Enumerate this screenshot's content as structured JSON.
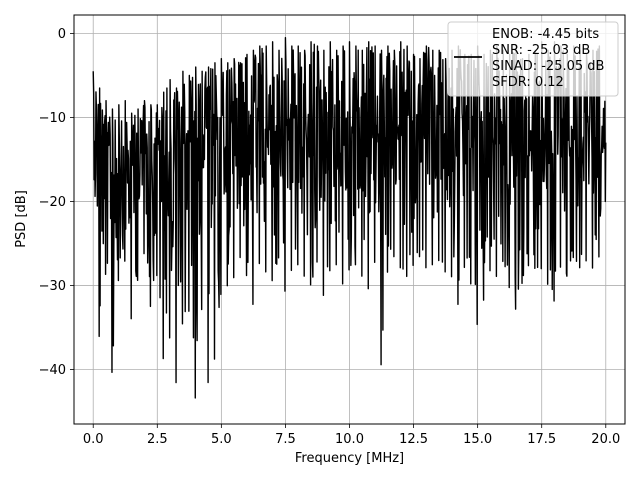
{
  "chart_data": {
    "type": "line",
    "title": "",
    "xlabel": "Frequency [MHz]",
    "ylabel": "PSD [dB]",
    "xlim": [
      -0.75,
      20.75
    ],
    "ylim": [
      -46.5,
      2.2
    ],
    "xticks": [
      0.0,
      2.5,
      5.0,
      7.5,
      10.0,
      12.5,
      15.0,
      17.5,
      20.0
    ],
    "xtick_labels": [
      "0.0",
      "2.5",
      "5.0",
      "7.5",
      "10.0",
      "12.5",
      "15.0",
      "17.5",
      "20.0"
    ],
    "yticks": [
      0,
      -10,
      -20,
      -30,
      -40
    ],
    "ytick_labels": [
      "0",
      "−10",
      "−20",
      "−30",
      "−40"
    ],
    "grid": true,
    "legend": {
      "position": "top-right",
      "entries": [
        "ENOB: -4.45 bits",
        "SNR: -25.03 dB",
        "SINAD: -25.05 dB",
        "SFDR: 0.12"
      ]
    },
    "series": [
      {
        "color": "#000000",
        "x": [
          0.0,
          0.25,
          0.5,
          0.75,
          1.0,
          1.25,
          1.5,
          1.75,
          2.0,
          2.25,
          2.5,
          2.75,
          3.0,
          3.25,
          3.5,
          3.75,
          4.0,
          4.25,
          4.5,
          4.75,
          5.0,
          5.25,
          5.5,
          5.75,
          6.0,
          6.25,
          6.5,
          6.75,
          7.0,
          7.25,
          7.5,
          7.75,
          8.0,
          8.25,
          8.5,
          8.75,
          9.0,
          9.25,
          9.5,
          9.75,
          10.0,
          10.25,
          10.5,
          10.75,
          11.0,
          11.25,
          11.5,
          11.75,
          12.0,
          12.25,
          12.5,
          12.75,
          13.0,
          13.25,
          13.5,
          13.75,
          14.0,
          14.25,
          14.5,
          14.75,
          15.0,
          15.25,
          15.5,
          15.75,
          16.0,
          16.25,
          16.5,
          16.75,
          17.0,
          17.25,
          17.5,
          17.75,
          18.0,
          18.25,
          18.5,
          18.75,
          19.0,
          19.25,
          19.5,
          19.75,
          20.0
        ],
        "y_max": [
          -4.5,
          -6.5,
          -8.0,
          -9.0,
          -8.5,
          -8.0,
          -9.5,
          -9.0,
          -8.0,
          -8.5,
          -8.5,
          -7.0,
          -5.5,
          -6.5,
          -4.5,
          -5.0,
          -4.0,
          -4.5,
          -4.0,
          -3.5,
          -3.0,
          -3.5,
          -3.0,
          -3.5,
          -2.5,
          -2.0,
          -1.5,
          -1.5,
          -1.0,
          -2.0,
          -0.5,
          -1.5,
          -1.5,
          -2.0,
          -1.0,
          -1.5,
          -2.0,
          -1.0,
          -2.0,
          -1.5,
          -1.0,
          -1.5,
          -2.0,
          -1.0,
          -1.5,
          -2.0,
          -1.5,
          -2.0,
          -1.0,
          -1.5,
          -2.5,
          -3.0,
          -1.5,
          -2.0,
          -2.0,
          -3.0,
          -2.0,
          -1.5,
          -2.5,
          -2.5,
          -1.5,
          -2.5,
          -2.0,
          -1.5,
          -2.0,
          -2.5,
          -1.5,
          -3.0,
          -2.5,
          -2.0,
          -1.0,
          -2.0,
          -1.0,
          -1.5,
          -2.5,
          -1.5,
          -2.0,
          -2.5,
          -2.0,
          -1.5,
          -4.0
        ],
        "y_min": [
          -17.5,
          -37.5,
          -28.0,
          -41.3,
          -28.5,
          -27.0,
          -34.5,
          -29.0,
          -26.0,
          -33.0,
          -28.5,
          -39.5,
          -36.0,
          -42.0,
          -34.0,
          -33.0,
          -44.2,
          -32.0,
          -42.3,
          -38.5,
          -30.5,
          -30.0,
          -29.0,
          -26.5,
          -29.0,
          -32.5,
          -27.0,
          -28.5,
          -29.5,
          -26.5,
          -31.0,
          -28.0,
          -27.5,
          -29.0,
          -30.0,
          -27.0,
          -31.5,
          -28.0,
          -27.5,
          -30.0,
          -28.0,
          -27.5,
          -29.0,
          -30.5,
          -27.0,
          -40.4,
          -27.5,
          -26.5,
          -28.0,
          -29.0,
          -27.5,
          -26.5,
          -28.0,
          -27.5,
          -27.0,
          -28.5,
          -29.0,
          -32.5,
          -27.5,
          -30.0,
          -35.0,
          -31.5,
          -28.0,
          -29.0,
          -27.0,
          -30.5,
          -33.0,
          -29.5,
          -27.5,
          -28.0,
          -28.0,
          -30.0,
          -32.0,
          -27.5,
          -29.0,
          -26.5,
          -28.0,
          -27.0,
          -28.0,
          -26.5,
          -19.5
        ],
        "y_mid": [
          -11.0,
          -16.0,
          -14.0,
          -17.0,
          -16.0,
          -15.0,
          -16.5,
          -15.5,
          -14.5,
          -15.0,
          -14.0,
          -15.0,
          -14.5,
          -15.5,
          -14.0,
          -13.5,
          -14.0,
          -13.5,
          -13.0,
          -13.5,
          -13.0,
          -12.5,
          -12.0,
          -12.5,
          -12.0,
          -11.5,
          -11.0,
          -11.5,
          -11.0,
          -12.0,
          -11.0,
          -11.5,
          -11.5,
          -12.0,
          -11.0,
          -11.5,
          -12.0,
          -11.0,
          -12.0,
          -11.5,
          -11.0,
          -11.5,
          -12.0,
          -11.0,
          -11.5,
          -12.0,
          -11.5,
          -12.0,
          -11.0,
          -11.5,
          -12.5,
          -13.0,
          -11.5,
          -12.0,
          -12.0,
          -13.0,
          -12.0,
          -11.5,
          -12.5,
          -12.5,
          -11.5,
          -12.5,
          -12.0,
          -11.5,
          -12.0,
          -12.5,
          -11.5,
          -13.0,
          -12.5,
          -12.0,
          -11.0,
          -12.0,
          -11.0,
          -11.5,
          -12.5,
          -11.5,
          -12.0,
          -12.5,
          -12.0,
          -11.5,
          -13.0
        ]
      }
    ]
  }
}
